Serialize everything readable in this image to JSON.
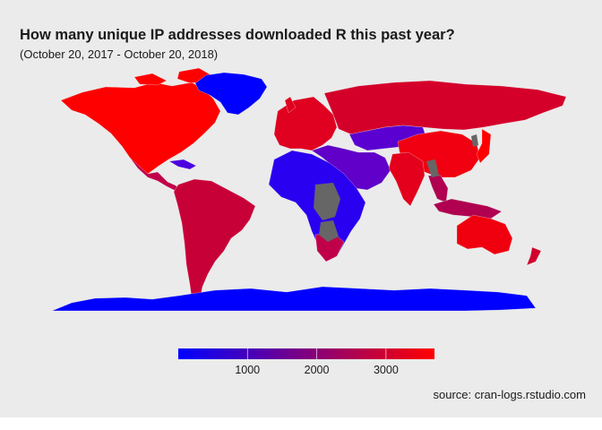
{
  "title": "How many unique IP addresses downloaded R this past year?",
  "subtitle": "(October 20, 2017 - October 20, 2018)",
  "caption": "source: cran-logs.rstudio.com",
  "legend": {
    "type": "colorbar",
    "placement": "bottom",
    "color_low": "#0000ff",
    "color_high": "#ff0000",
    "min": 1,
    "max": 3700,
    "ticks": [
      {
        "value": 1000,
        "label": "1000"
      },
      {
        "value": 2000,
        "label": "2000"
      },
      {
        "value": 3000,
        "label": "3000"
      }
    ]
  },
  "map": {
    "type": "choropleth world map",
    "no_data_color": "#666666",
    "regions": [
      {
        "name": "North America",
        "color": "#ff0000"
      },
      {
        "name": "Greenland",
        "color": "#0000ff"
      },
      {
        "name": "Mexico and Central America",
        "color": "#c0004a"
      },
      {
        "name": "Caribbean",
        "color": "#4b00e0"
      },
      {
        "name": "South America",
        "color": "#c80038"
      },
      {
        "name": "Europe",
        "color": "#e00020"
      },
      {
        "name": "Russia",
        "color": "#d4002a"
      },
      {
        "name": "Central Asia",
        "color": "#5a00d0"
      },
      {
        "name": "Middle East",
        "color": "#6000c8"
      },
      {
        "name": "India",
        "color": "#e4001c"
      },
      {
        "name": "China",
        "color": "#f00010"
      },
      {
        "name": "Japan",
        "color": "#ff0000"
      },
      {
        "name": "Southeast Asia",
        "color": "#b00050"
      },
      {
        "name": "Africa",
        "color": "#2a00f0"
      },
      {
        "name": "South Africa",
        "color": "#c0004a"
      },
      {
        "name": "Australia",
        "color": "#f0000f"
      },
      {
        "name": "New Zealand",
        "color": "#d0002c"
      },
      {
        "name": "Antarctica",
        "color": "#0000ff"
      }
    ]
  }
}
